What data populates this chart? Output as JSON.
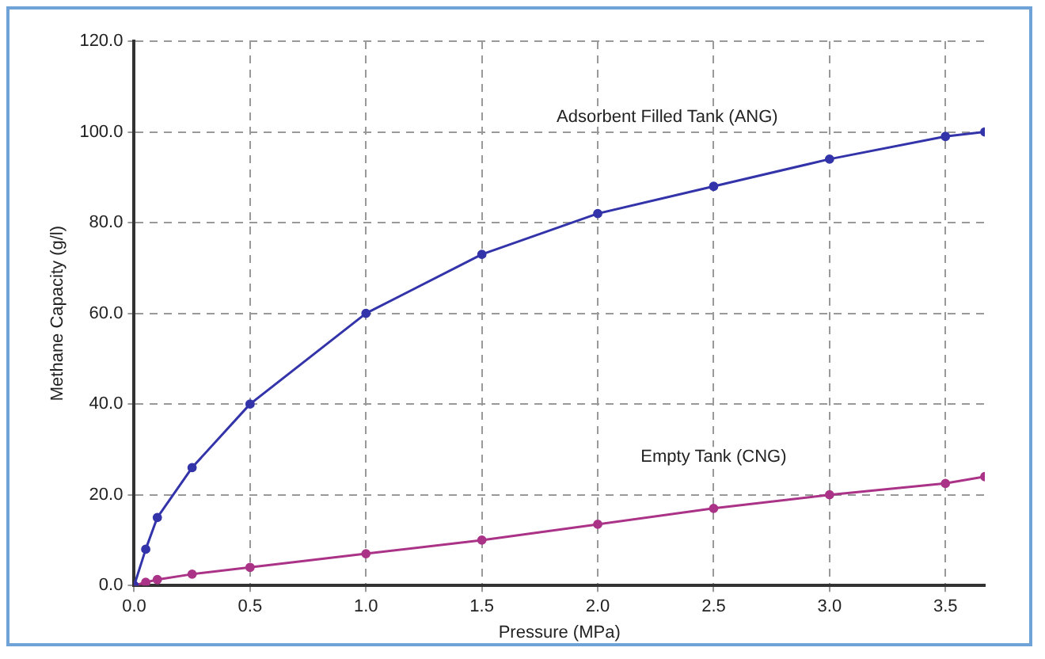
{
  "chart_data": {
    "type": "line",
    "xlabel": "Pressure (MPa)",
    "ylabel": "Methane Capacity (g/l)",
    "xlim": [
      0,
      3.67
    ],
    "xticks": [
      {
        "value": 0,
        "label": "0.0"
      },
      {
        "value": 0.5,
        "label": "0.5"
      },
      {
        "value": 1,
        "label": "1.0"
      },
      {
        "value": 1.5,
        "label": "1.5"
      },
      {
        "value": 2,
        "label": "2.0"
      },
      {
        "value": 2.5,
        "label": "2.5"
      },
      {
        "value": 3,
        "label": "3.0"
      },
      {
        "value": 3.5,
        "label": "3.5"
      }
    ],
    "ylim": [
      0,
      120
    ],
    "yticks": [
      {
        "value": 0,
        "label": "0.0"
      },
      {
        "value": 20,
        "label": "20.0"
      },
      {
        "value": 40,
        "label": "40.0"
      },
      {
        "value": 60,
        "label": "60.0"
      },
      {
        "value": 80,
        "label": "80.0"
      },
      {
        "value": 100,
        "label": "100.0"
      },
      {
        "value": 120,
        "label": "120.0"
      }
    ],
    "grid": true,
    "line_style": "solid",
    "marker": "circle",
    "legend": false,
    "series": [
      {
        "name": "Adsorbent Filled Tank (ANG)",
        "color": "#3333aa",
        "x": [
          0,
          0.05,
          0.1,
          0.25,
          0.5,
          1.0,
          1.5,
          2.0,
          2.5,
          3.0,
          3.5,
          3.67
        ],
        "values": [
          0,
          8,
          15,
          26,
          40,
          60,
          73,
          82,
          88,
          94,
          99,
          100
        ]
      },
      {
        "name": "Empty Tank (CNG)",
        "color": "#aa3388",
        "x": [
          0,
          0.05,
          0.1,
          0.25,
          0.5,
          1.0,
          1.5,
          2.0,
          2.5,
          3.0,
          3.5,
          3.67
        ],
        "values": [
          0,
          0.7,
          1.3,
          2.5,
          4,
          7,
          10,
          13.5,
          17,
          20,
          22.5,
          24
        ]
      }
    ]
  }
}
